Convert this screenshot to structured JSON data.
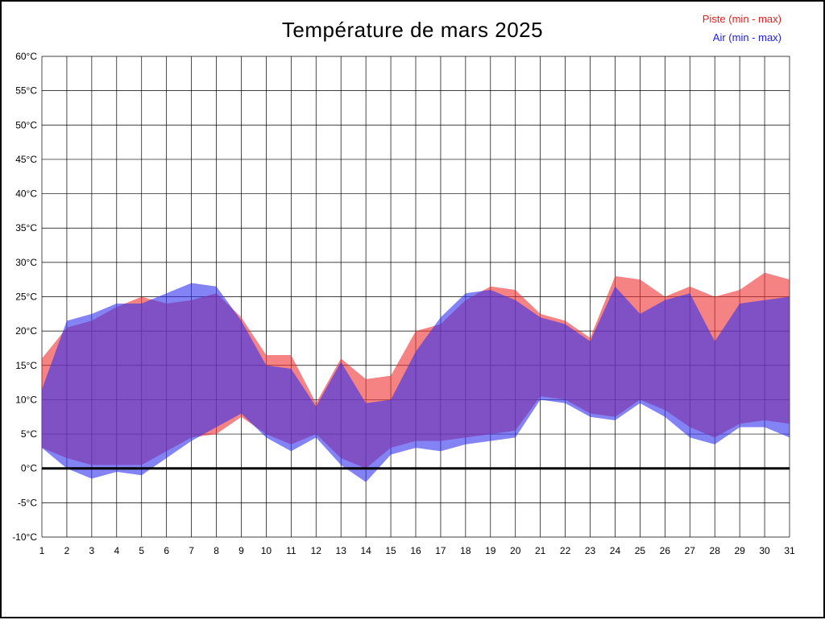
{
  "page": {
    "background": "#ffffff",
    "border_color": "#000000"
  },
  "legend": {
    "position": "top-right"
  },
  "chart_data": {
    "type": "area",
    "title": "Température de mars 2025",
    "xlabel": "",
    "ylabel": "",
    "x": [
      1,
      2,
      3,
      4,
      5,
      6,
      7,
      8,
      9,
      10,
      11,
      12,
      13,
      14,
      15,
      16,
      17,
      18,
      19,
      20,
      21,
      22,
      23,
      24,
      25,
      26,
      27,
      28,
      29,
      30,
      31
    ],
    "ylim": [
      -10,
      60
    ],
    "y_tick_step": 5,
    "y_tick_suffix": "°C",
    "grid": true,
    "grid_color": "#000000",
    "zero_line": true,
    "zero_line_width": 3,
    "series": [
      {
        "id": "piste",
        "name": "Piste (min - max)",
        "color": "#f03030",
        "legend_color": "#e02020",
        "opacity": 0.6,
        "max": [
          16,
          20.5,
          21.5,
          23.5,
          25,
          24,
          24.5,
          25.5,
          22,
          16.5,
          16.5,
          9.5,
          16,
          13,
          13.5,
          20,
          21,
          24.5,
          26.5,
          26,
          22.5,
          21.5,
          19,
          28,
          27.5,
          25,
          26.5,
          25,
          26,
          28.5,
          27.5
        ],
        "min": [
          3,
          1.5,
          0.5,
          0.5,
          0.5,
          2.5,
          4.5,
          5,
          7.5,
          5,
          3.5,
          5,
          1.5,
          0,
          3,
          4,
          4,
          4.5,
          5,
          5.5,
          10.5,
          10,
          8,
          7.5,
          10,
          8.5,
          6,
          4.5,
          6.5,
          7,
          6.5
        ]
      },
      {
        "id": "air",
        "name": "Air (min - max)",
        "color": "#3030f0",
        "legend_color": "#2020e0",
        "opacity": 0.6,
        "max": [
          11.5,
          21.5,
          22.5,
          24,
          24,
          25.5,
          27,
          26.5,
          21.5,
          15,
          14.5,
          9,
          15.5,
          9.5,
          10,
          17,
          22,
          25.5,
          26,
          24.5,
          22,
          21,
          18.5,
          26.5,
          22.5,
          24.5,
          25.5,
          18.5,
          24,
          24.5,
          25
        ],
        "min": [
          3,
          0,
          -1.5,
          -0.5,
          -1,
          1.5,
          4,
          6,
          8,
          4.5,
          2.5,
          4.5,
          0.5,
          -2,
          2,
          3,
          2.5,
          3.5,
          4,
          4.5,
          10,
          9.5,
          7.5,
          7,
          9.5,
          7.5,
          4.5,
          3.5,
          6,
          6,
          4.5
        ]
      }
    ]
  }
}
